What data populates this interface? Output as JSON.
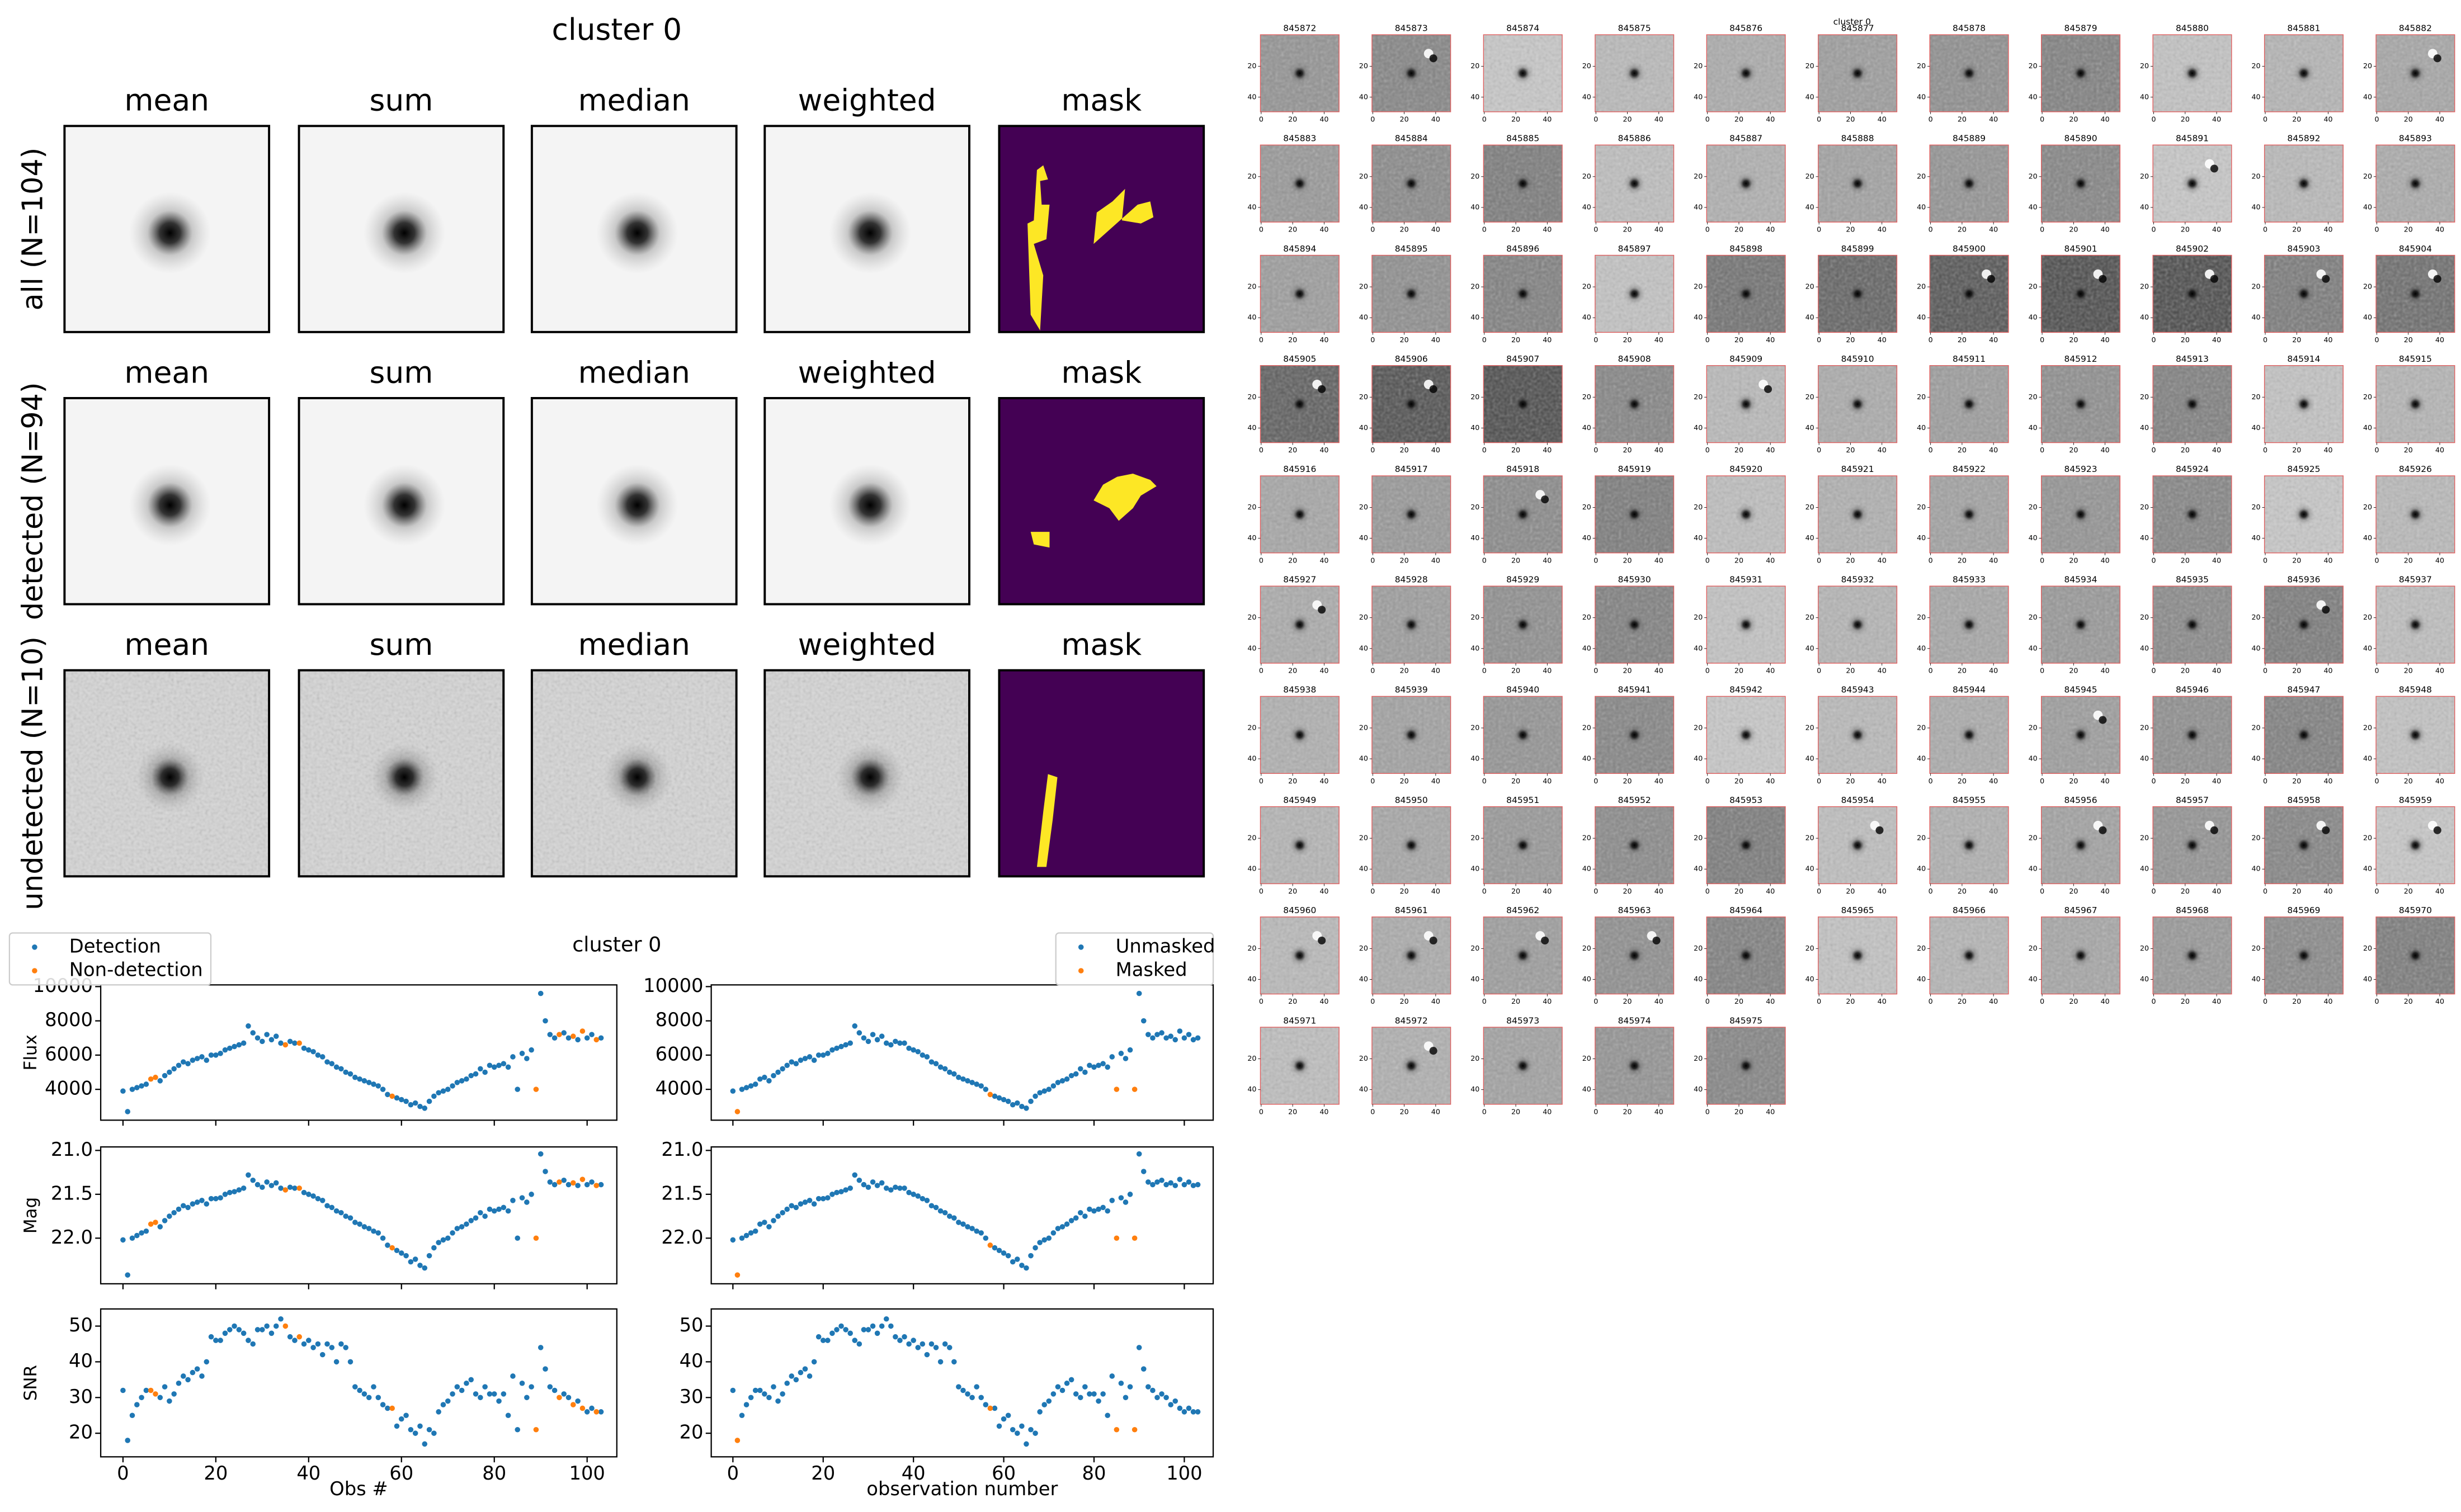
{
  "stack": {
    "title": "cluster 0",
    "rows": [
      {
        "label": "all (N=104)",
        "columns": [
          "mean",
          "sum",
          "median",
          "weighted",
          "mask"
        ]
      },
      {
        "label": "detected (N=94)",
        "columns": [
          "mean",
          "sum",
          "median",
          "weighted",
          "mask"
        ]
      },
      {
        "label": "undetected (N=10)",
        "columns": [
          "mean",
          "sum",
          "median",
          "weighted",
          "mask"
        ]
      }
    ]
  },
  "lightcurve": {
    "type": "scatter",
    "title": "cluster 0",
    "xlabels": [
      "Obs #",
      "observation number"
    ],
    "xlim": [
      -4.8,
      106.4
    ],
    "xticks": [
      0,
      20,
      40,
      60,
      80,
      100
    ],
    "panels": [
      {
        "ylabel": "Flux",
        "ylim": [
          2200,
          10100
        ],
        "yticks": [
          4000,
          6000,
          8000,
          10000
        ],
        "values": [
          3900,
          2700,
          4000,
          4100,
          4200,
          4300,
          4600,
          4700,
          4500,
          4800,
          5000,
          5200,
          5400,
          5600,
          5500,
          5700,
          5800,
          5900,
          5700,
          6000,
          6000,
          6100,
          6300,
          6400,
          6500,
          6600,
          6700,
          7700,
          7300,
          7000,
          6800,
          7200,
          6900,
          7100,
          6700,
          6600,
          6800,
          6700,
          6700,
          6400,
          6300,
          6200,
          6000,
          5900,
          5600,
          5500,
          5300,
          5200,
          5000,
          4900,
          4700,
          4600,
          4500,
          4400,
          4300,
          4200,
          4000,
          3700,
          3600,
          3500,
          3400,
          3300,
          3100,
          3200,
          3000,
          2900,
          3300,
          3600,
          3800,
          3900,
          4000,
          4200,
          4400,
          4500,
          4600,
          4800,
          4900,
          5200,
          5000,
          5400,
          5300,
          5400,
          5500,
          5300,
          5900,
          4000,
          6100,
          5800,
          6300,
          4000,
          9600,
          8000,
          7200,
          7000,
          7200,
          7300,
          7000,
          7100,
          6900,
          7400,
          7000,
          7200,
          6900,
          7000
        ]
      },
      {
        "ylabel": "Mag",
        "ylim": [
          22.52,
          20.96
        ],
        "yticks": [
          {
            "value": 21,
            "label": "21.0"
          },
          21.5,
          {
            "value": 22,
            "label": "22.0"
          }
        ],
        "values": [
          22.02,
          22.42,
          22.0,
          21.97,
          21.94,
          21.92,
          21.84,
          21.82,
          21.87,
          21.8,
          21.75,
          21.71,
          21.67,
          21.63,
          21.65,
          21.61,
          21.59,
          21.57,
          21.61,
          21.55,
          21.55,
          21.54,
          21.5,
          21.48,
          21.47,
          21.45,
          21.43,
          21.28,
          21.34,
          21.39,
          21.42,
          21.36,
          21.4,
          21.37,
          21.43,
          21.45,
          21.42,
          21.43,
          21.43,
          21.48,
          21.5,
          21.52,
          21.55,
          21.57,
          21.63,
          21.65,
          21.69,
          21.71,
          21.75,
          21.77,
          21.82,
          21.84,
          21.87,
          21.89,
          21.92,
          21.94,
          22.0,
          22.08,
          22.11,
          22.14,
          22.17,
          22.2,
          22.27,
          22.24,
          22.31,
          22.34,
          22.2,
          22.11,
          22.05,
          22.02,
          22.0,
          21.94,
          21.89,
          21.87,
          21.84,
          21.8,
          21.77,
          21.71,
          21.75,
          21.67,
          21.69,
          21.67,
          21.65,
          21.69,
          21.57,
          22.0,
          21.54,
          21.59,
          21.5,
          22.0,
          21.04,
          21.24,
          21.36,
          21.39,
          21.36,
          21.34,
          21.39,
          21.37,
          21.4,
          21.33,
          21.39,
          21.36,
          21.4,
          21.39
        ]
      },
      {
        "ylabel": "SNR",
        "ylim": [
          13.4,
          54.8
        ],
        "yticks": [
          20,
          30,
          40,
          50
        ],
        "values": [
          32,
          18,
          25,
          28,
          30,
          32,
          32,
          31,
          30,
          33,
          29,
          31,
          34,
          36,
          35,
          37,
          38,
          36,
          40,
          47,
          46,
          46,
          48,
          49,
          50,
          49,
          48,
          46,
          45,
          49,
          49,
          50,
          48,
          50,
          52,
          50,
          47,
          46,
          47,
          45,
          46,
          44,
          45,
          42,
          45,
          44,
          40,
          45,
          44,
          40,
          33,
          32,
          31,
          30,
          33,
          30,
          28,
          27,
          27,
          22,
          24,
          25,
          21,
          20,
          22,
          17,
          21,
          20,
          26,
          28,
          29,
          31,
          33,
          32,
          34,
          35,
          31,
          30,
          33,
          31,
          31,
          29,
          31,
          25,
          36,
          21,
          34,
          30,
          33,
          21,
          44,
          38,
          33,
          32,
          30,
          31,
          30,
          28,
          29,
          27,
          26,
          27,
          26,
          26
        ]
      }
    ],
    "legends": [
      {
        "series": [
          {
            "name": "Detection",
            "color": "#1f77b4",
            "x": [
              0,
              1,
              2,
              3,
              4,
              5,
              8,
              9,
              10,
              11,
              12,
              13,
              14,
              15,
              16,
              17,
              18,
              19,
              20,
              21,
              22,
              23,
              24,
              25,
              26,
              27,
              28,
              29,
              30,
              31,
              32,
              33,
              34,
              36,
              37,
              39,
              40,
              41,
              42,
              43,
              44,
              45,
              46,
              47,
              48,
              49,
              50,
              51,
              52,
              53,
              54,
              55,
              56,
              57,
              59,
              60,
              61,
              62,
              63,
              64,
              65,
              66,
              67,
              68,
              69,
              70,
              71,
              72,
              73,
              74,
              75,
              76,
              77,
              78,
              79,
              80,
              81,
              82,
              83,
              84,
              85,
              86,
              87,
              88,
              90,
              91,
              92,
              93,
              95,
              96,
              98,
              100,
              101,
              103
            ]
          },
          {
            "name": "Non-detection",
            "color": "#ff7f0e",
            "x": [
              6,
              7,
              35,
              38,
              58,
              89,
              94,
              97,
              99,
              102
            ]
          }
        ]
      },
      {
        "series": [
          {
            "name": "Unmasked",
            "color": "#1f77b4",
            "x": [
              0,
              2,
              3,
              4,
              5,
              6,
              7,
              8,
              9,
              10,
              11,
              12,
              13,
              14,
              15,
              16,
              17,
              18,
              19,
              20,
              21,
              22,
              23,
              24,
              25,
              26,
              27,
              28,
              29,
              30,
              31,
              32,
              33,
              34,
              35,
              36,
              37,
              38,
              39,
              40,
              41,
              42,
              43,
              44,
              45,
              46,
              47,
              48,
              49,
              50,
              51,
              52,
              53,
              54,
              55,
              56,
              58,
              59,
              60,
              61,
              62,
              63,
              64,
              65,
              66,
              67,
              68,
              69,
              70,
              71,
              72,
              73,
              74,
              75,
              76,
              77,
              78,
              79,
              80,
              81,
              82,
              83,
              84,
              86,
              87,
              88,
              90,
              91,
              92,
              93,
              94,
              95,
              96,
              97,
              98,
              99,
              100,
              101,
              102,
              103
            ]
          },
          {
            "name": "Masked",
            "color": "#ff7f0e",
            "x": [
              1,
              57,
              85,
              89
            ]
          }
        ]
      }
    ]
  },
  "stamps": {
    "title": "cluster 0",
    "xticks": [
      0,
      20,
      40
    ],
    "yticks": [
      20,
      40
    ],
    "ids": [
      "845872",
      "845873",
      "845874",
      "845875",
      "845876",
      "845877",
      "845878",
      "845879",
      "845880",
      "845881",
      "845882",
      "845883",
      "845884",
      "845885",
      "845886",
      "845887",
      "845888",
      "845889",
      "845890",
      "845891",
      "845892",
      "845893",
      "845894",
      "845895",
      "845896",
      "845897",
      "845898",
      "845899",
      "845900",
      "845901",
      "845902",
      "845903",
      "845904",
      "845905",
      "845906",
      "845907",
      "845908",
      "845909",
      "845910",
      "845911",
      "845912",
      "845913",
      "845914",
      "845915",
      "845916",
      "845917",
      "845918",
      "845919",
      "845920",
      "845921",
      "845922",
      "845923",
      "845924",
      "845925",
      "845926",
      "845927",
      "845928",
      "845929",
      "845930",
      "845931",
      "845932",
      "845933",
      "845934",
      "845935",
      "845936",
      "845937",
      "845938",
      "845939",
      "845940",
      "845941",
      "845942",
      "845943",
      "845944",
      "845945",
      "845946",
      "845947",
      "845948",
      "845949",
      "845950",
      "845951",
      "845952",
      "845953",
      "845954",
      "845955",
      "845956",
      "845957",
      "845958",
      "845959",
      "845960",
      "845961",
      "845962",
      "845963",
      "845964",
      "845965",
      "845966",
      "845967",
      "845968",
      "845969",
      "845970",
      "845971",
      "845972",
      "845973",
      "845974",
      "845975"
    ]
  }
}
